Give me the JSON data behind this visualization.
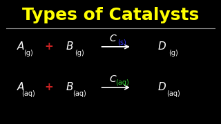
{
  "title": "Types of Catalysts",
  "title_color": "#FFFF00",
  "title_fontsize": 18,
  "background_color": "#000000",
  "line_color": "#888888",
  "text_color": "#FFFFFF",
  "plus_color": "#CC2222",
  "row1": {
    "A": "A",
    "A_sub": "(g)",
    "B": "B",
    "B_sub": "(g)",
    "C": "C",
    "C_sub": "(s)",
    "C_sub_color": "#3333FF",
    "D": "D",
    "D_sub": "(g)"
  },
  "row2": {
    "A": "A",
    "A_sub": "(aq)",
    "B": "B",
    "B_sub": "(aq)",
    "C": "C",
    "C_sub": "(aq)",
    "C_sub_color": "#33CC33",
    "D": "D",
    "D_sub": "(aq)"
  }
}
